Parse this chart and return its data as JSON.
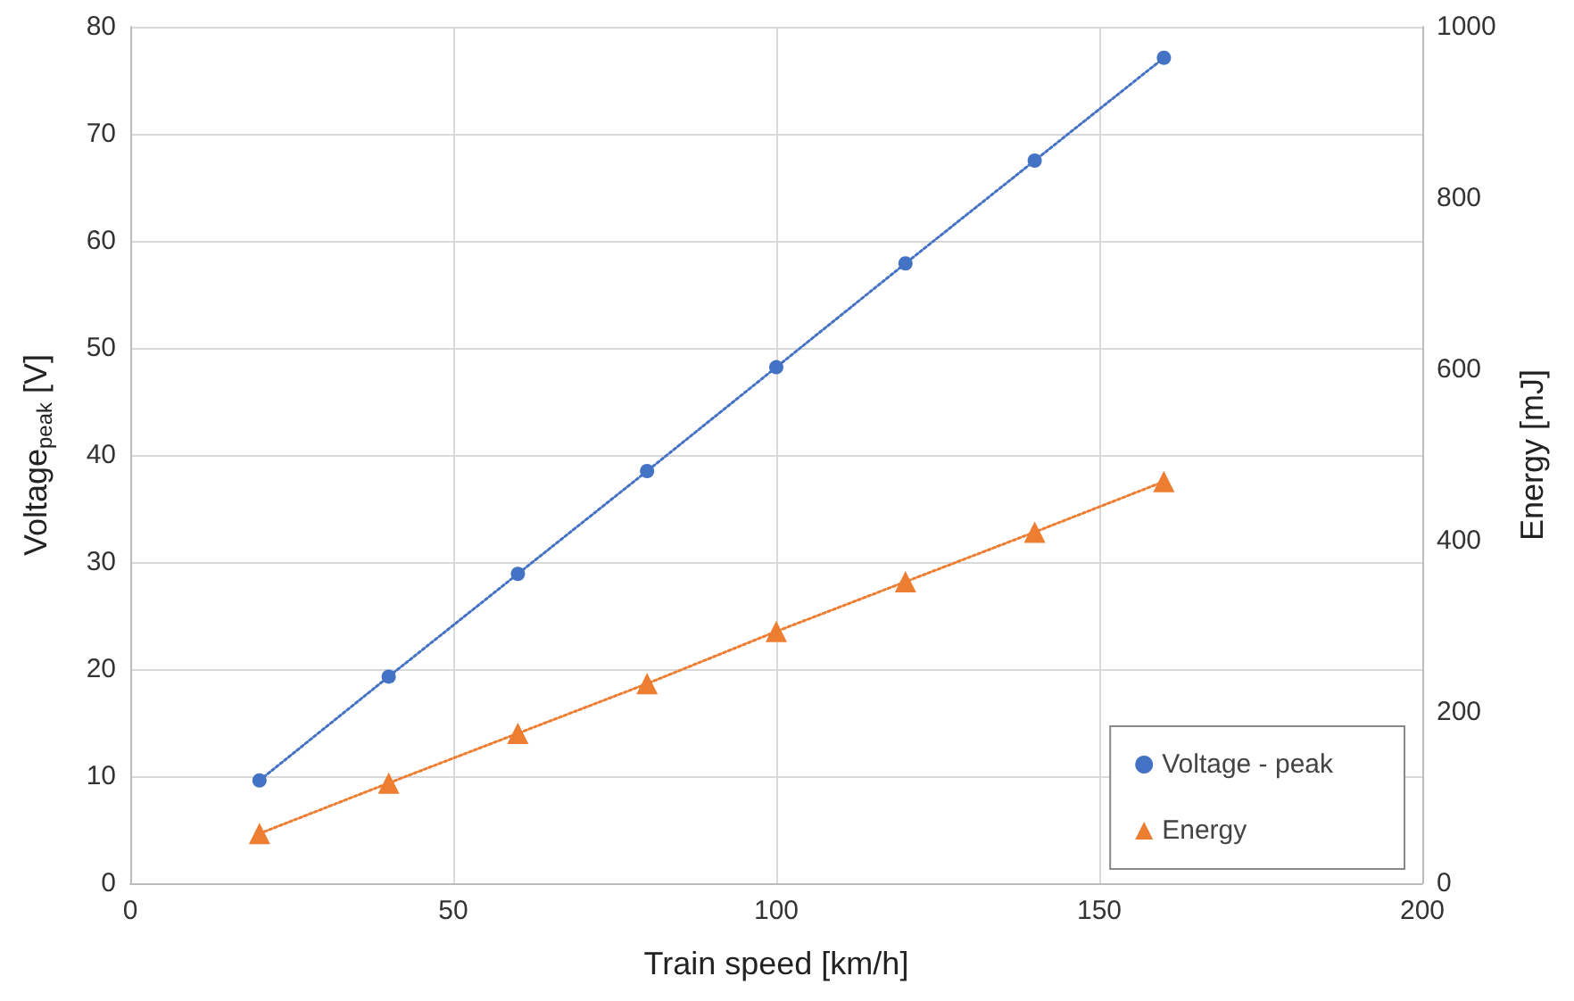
{
  "chart_data": {
    "type": "line",
    "xlabel": "Train speed [km/h]",
    "ylabel": "Voltage$_{peak}$ [V]",
    "y2label": "Energy [mJ]",
    "x": [
      20,
      40,
      60,
      80,
      100,
      120,
      140,
      160
    ],
    "series": [
      {
        "name": "Voltage - peak",
        "color": "#4472c4",
        "marker": "circle",
        "values": [
          9.6,
          19.3,
          28.9,
          38.5,
          48.2,
          57.9,
          67.5,
          77.1
        ]
      },
      {
        "name": "Energy",
        "color": "#ed7d31",
        "marker": "triangle",
        "axis": "y2",
        "values": [
          58,
          117,
          175,
          233,
          294,
          352,
          410,
          469
        ]
      }
    ],
    "xlim": [
      0,
      200
    ],
    "xticks": [
      0,
      50,
      100,
      150,
      200
    ],
    "ylim": [
      0,
      80
    ],
    "yticks": [
      0,
      10,
      20,
      30,
      40,
      50,
      60,
      70,
      80
    ],
    "y2lim": [
      0,
      1000
    ],
    "y2ticks": [
      0,
      200,
      400,
      600,
      800,
      1000
    ],
    "grid": true,
    "legend": "bottom right",
    "line_style": "dotted"
  }
}
